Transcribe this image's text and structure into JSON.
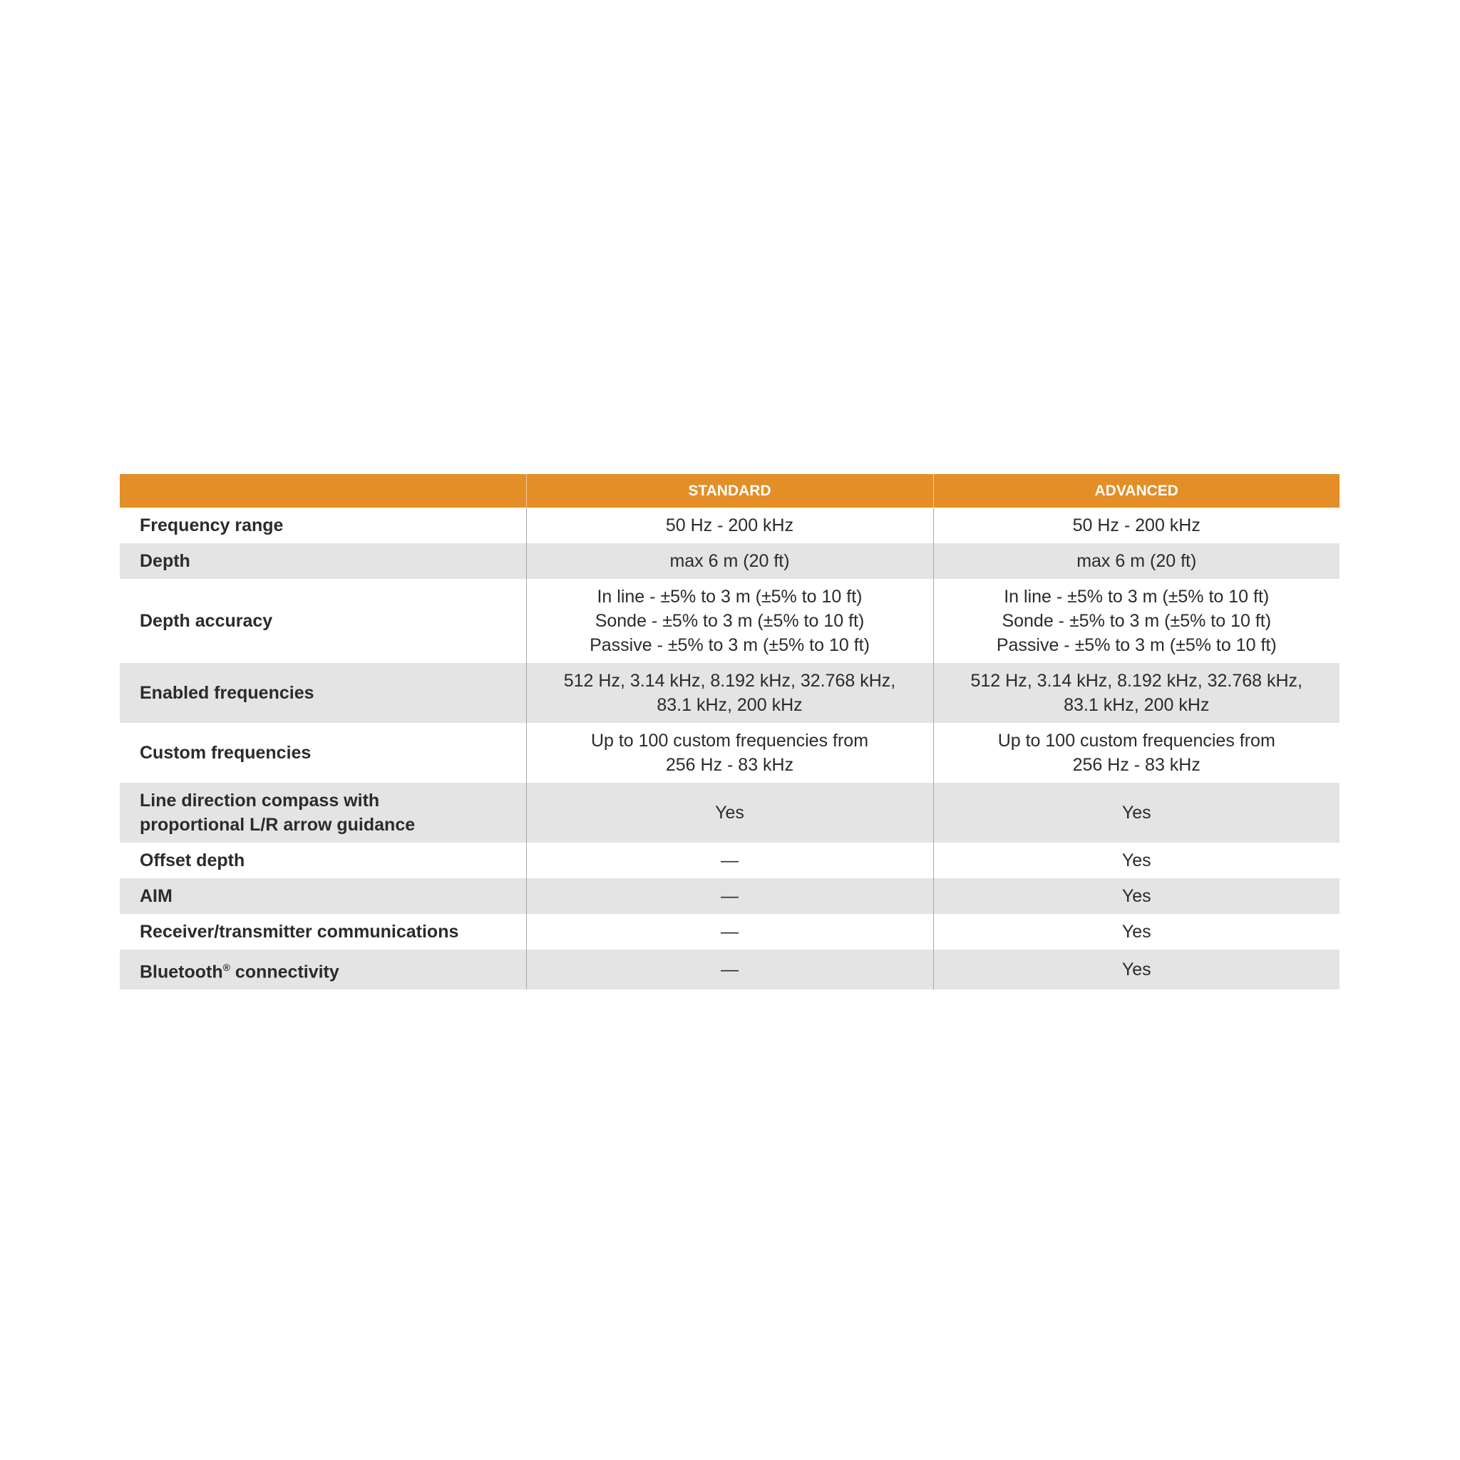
{
  "header": {
    "col0": "",
    "col1": "STANDARD",
    "col2": "ADVANCED"
  },
  "accent_color": "#e38e26",
  "rows": [
    {
      "label": "Frequency range",
      "standard": [
        "50 Hz - 200 kHz"
      ],
      "advanced": [
        "50 Hz - 200 kHz"
      ]
    },
    {
      "label": "Depth",
      "standard": [
        "max 6 m (20 ft)"
      ],
      "advanced": [
        "max 6 m (20 ft)"
      ]
    },
    {
      "label": "Depth accuracy",
      "standard": [
        "In line - ±5% to 3 m (±5% to 10 ft)",
        "Sonde - ±5% to 3 m (±5% to 10 ft)",
        "Passive - ±5% to 3 m (±5% to 10 ft)"
      ],
      "advanced": [
        "In line - ±5% to 3 m (±5% to 10 ft)",
        "Sonde - ±5% to 3 m (±5% to 10 ft)",
        "Passive - ±5% to 3 m (±5% to 10 ft)"
      ]
    },
    {
      "label": "Enabled frequencies",
      "standard": [
        "512 Hz, 3.14 kHz, 8.192 kHz, 32.768 kHz,",
        "83.1 kHz, 200 kHz"
      ],
      "advanced": [
        "512 Hz, 3.14 kHz, 8.192 kHz, 32.768 kHz,",
        "83.1 kHz, 200 kHz"
      ]
    },
    {
      "label": "Custom frequencies",
      "standard": [
        "Up to 100 custom frequencies from",
        "256 Hz - 83 kHz"
      ],
      "advanced": [
        "Up to 100 custom frequencies from",
        "256 Hz - 83 kHz"
      ]
    },
    {
      "label": "Line direction compass with proportional L/R arrow guidance",
      "label_lines": [
        "Line direction compass with",
        "proportional L/R arrow guidance"
      ],
      "standard": [
        "Yes"
      ],
      "advanced": [
        "Yes"
      ]
    },
    {
      "label": "Offset depth",
      "standard": [
        "—"
      ],
      "advanced": [
        "Yes"
      ]
    },
    {
      "label": "AIM",
      "standard": [
        "—"
      ],
      "advanced": [
        "Yes"
      ]
    },
    {
      "label": "Receiver/transmitter communications",
      "standard": [
        "—"
      ],
      "advanced": [
        "Yes"
      ]
    },
    {
      "label": "Bluetooth® connectivity",
      "label_main": "Bluetooth",
      "label_sup": "®",
      "label_rest": " connectivity",
      "standard": [
        "—"
      ],
      "advanced": [
        "Yes"
      ]
    }
  ]
}
